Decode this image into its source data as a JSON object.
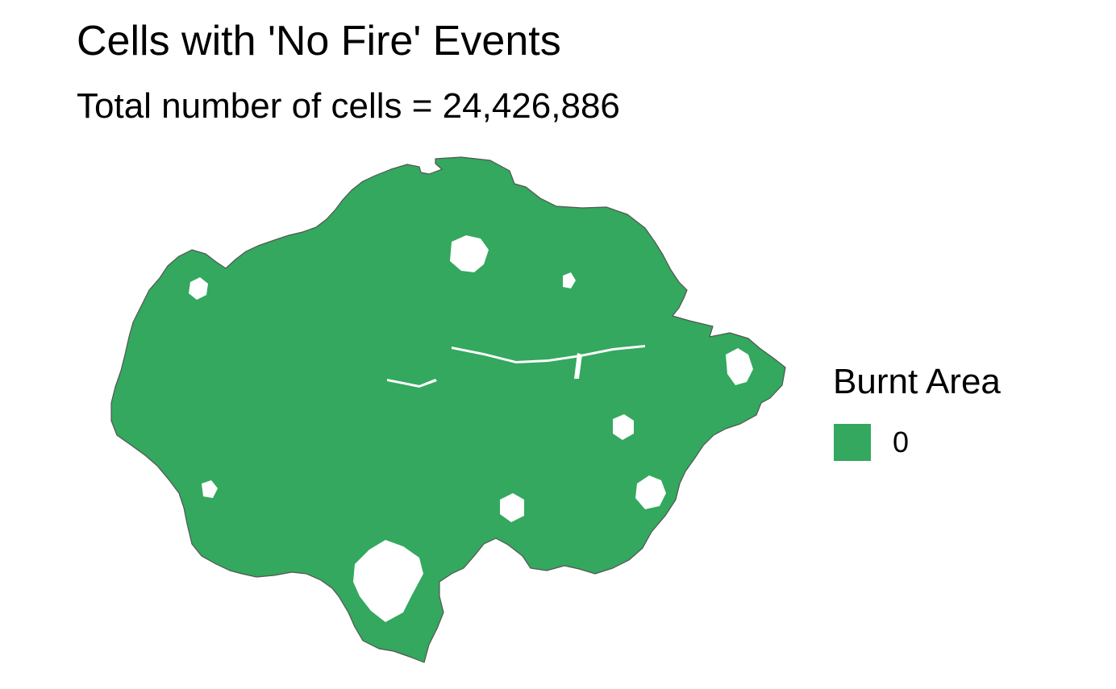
{
  "title": "Cells with 'No Fire' Events",
  "subtitle": "Total number of cells = 24,426,886",
  "colors": {
    "fill": "#33a85e",
    "border": "#555555",
    "background": "#ffffff"
  },
  "legend": {
    "title": "Burnt Area",
    "items": [
      {
        "label": "0",
        "color": "#33a85e"
      }
    ]
  }
}
